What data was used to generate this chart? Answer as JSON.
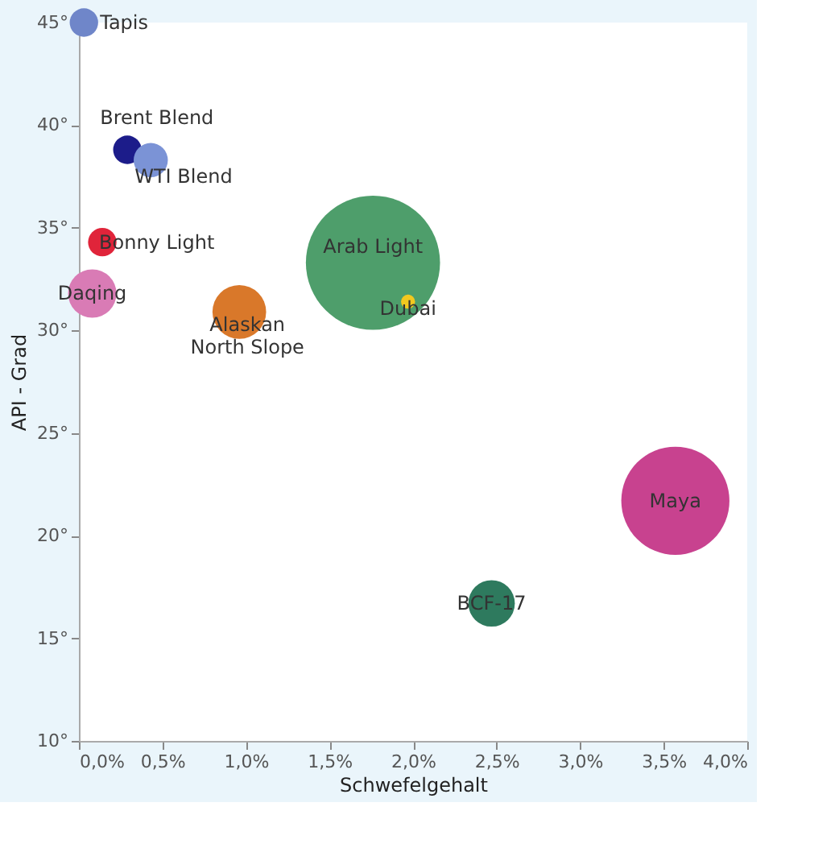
{
  "chart_data": {
    "type": "bubble",
    "xlabel": "Schwefelgehalt",
    "ylabel": "API - Grad",
    "xlim": [
      0,
      4.0
    ],
    "ylim": [
      10,
      45
    ],
    "xticks": [
      {
        "value": 0,
        "label": "0,0%"
      },
      {
        "value": 0.5,
        "label": "0,5%"
      },
      {
        "value": 1.0,
        "label": "1,0%"
      },
      {
        "value": 1.5,
        "label": "1,5%"
      },
      {
        "value": 2.0,
        "label": "2,0%"
      },
      {
        "value": 2.5,
        "label": "2,5%"
      },
      {
        "value": 3.0,
        "label": "3,0%"
      },
      {
        "value": 3.5,
        "label": "3,5%"
      },
      {
        "value": 4.0,
        "label": "4,0%"
      }
    ],
    "yticks": [
      {
        "value": 10,
        "label": "10°"
      },
      {
        "value": 15,
        "label": "15°"
      },
      {
        "value": 20,
        "label": "20°"
      },
      {
        "value": 25,
        "label": "25°"
      },
      {
        "value": 30,
        "label": "30°"
      },
      {
        "value": 35,
        "label": "35°"
      },
      {
        "value": 40,
        "label": "40°"
      },
      {
        "value": 45,
        "label": "45°"
      }
    ],
    "grid": false,
    "series": [
      {
        "name": "Tapis",
        "color": "#6f86c9",
        "x": [
          0.03
        ],
        "values": [
          45.0
        ],
        "sizes": [
          0.045
        ]
      },
      {
        "name": "Brent Blend",
        "color": "#1c1c8a",
        "x": [
          0.29
        ],
        "values": [
          38.8
        ],
        "sizes": [
          0.045
        ]
      },
      {
        "name": "WTI Blend",
        "color": "#7b93d6",
        "x": [
          0.43
        ],
        "values": [
          38.3
        ],
        "sizes": [
          0.065
        ]
      },
      {
        "name": "Bonny Light",
        "color": "#e0243a",
        "x": [
          0.14
        ],
        "values": [
          34.3
        ],
        "sizes": [
          0.045
        ]
      },
      {
        "name": "Daqing",
        "color": "#d97bb5",
        "x": [
          0.08
        ],
        "values": [
          31.8
        ],
        "sizes": [
          0.13
        ]
      },
      {
        "name": "Alaskan North Slope",
        "color": "#d9782a",
        "x": [
          0.96
        ],
        "values": [
          30.9
        ],
        "sizes": [
          0.16
        ]
      },
      {
        "name": "Arab Light",
        "color": "#4e9e6b",
        "x": [
          1.76
        ],
        "values": [
          33.3
        ],
        "sizes": [
          1
        ]
      },
      {
        "name": "Dubai",
        "color": "#f2c81f",
        "x": [
          1.97
        ],
        "values": [
          31.4
        ],
        "sizes": [
          0.011
        ]
      },
      {
        "name": "Maya",
        "color": "#c8428f",
        "x": [
          3.57
        ],
        "values": [
          21.7
        ],
        "sizes": [
          0.65
        ]
      },
      {
        "name": "BCF-17",
        "color": "#2e7a5e",
        "x": [
          2.47
        ],
        "values": [
          16.7
        ],
        "sizes": [
          0.12
        ]
      }
    ]
  }
}
